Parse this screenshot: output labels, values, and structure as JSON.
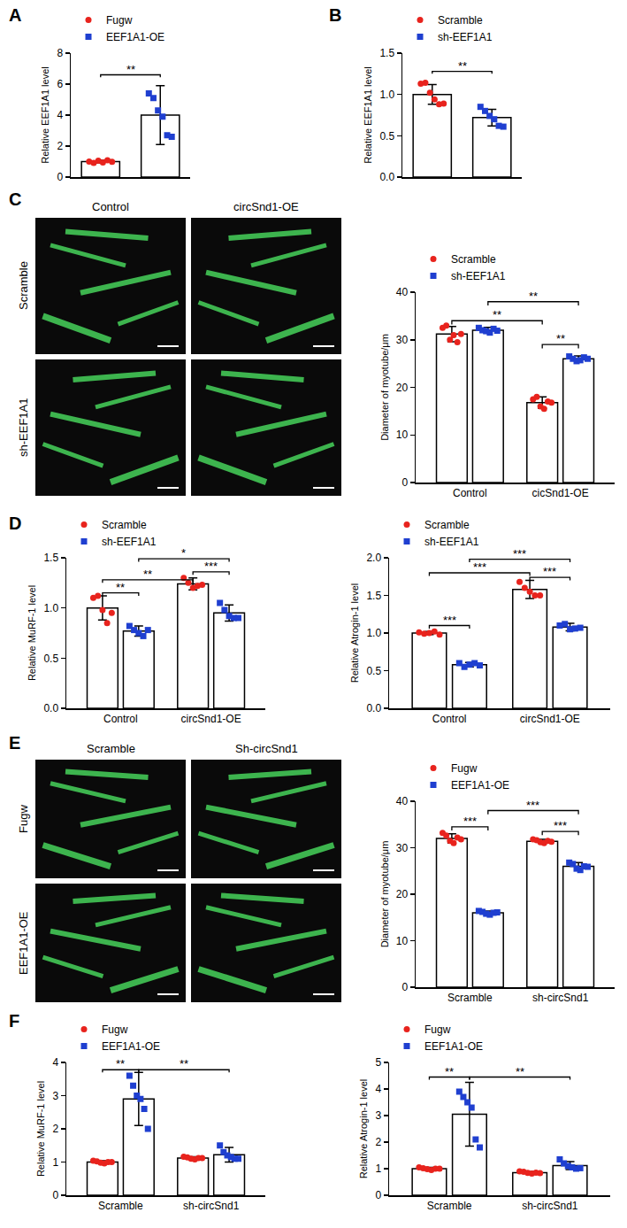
{
  "chart_data": [
    {
      "panel": "A",
      "type": "bar",
      "y_label": "Relative EEF1A1 level",
      "ylim": [
        0,
        8
      ],
      "yticks": [
        0,
        2,
        4,
        6,
        8
      ],
      "grid": false,
      "tick_labels": "y",
      "legend": "top",
      "series": [
        {
          "name": "Fugw",
          "color": "#e8231d",
          "marker": "circle",
          "values": [
            1.0
          ],
          "errors": [
            0.08
          ],
          "points": [
            [
              1.0,
              0.92,
              1.06,
              0.95,
              1.08,
              0.99
            ]
          ]
        },
        {
          "name": "EEF1A1-OE",
          "color": "#1f3fd0",
          "marker": "square",
          "values": [
            4.0
          ],
          "errors": [
            1.9
          ],
          "points": [
            [
              5.4,
              5.1,
              4.3,
              3.9,
              2.7,
              2.6
            ]
          ]
        }
      ],
      "comparisons": [
        {
          "from": [
            0,
            0
          ],
          "to": [
            0,
            1
          ],
          "y": 6.6,
          "label": "**"
        }
      ]
    },
    {
      "panel": "B",
      "type": "bar",
      "y_label": "Relative EEF1A1 level",
      "ylim": [
        0,
        1.5
      ],
      "yticks": [
        {
          "value": 0,
          "label": "0.0"
        },
        {
          "value": 0.5,
          "label": "0.5"
        },
        {
          "value": 1,
          "label": "1.0"
        },
        {
          "value": 1.5,
          "label": "1.5"
        }
      ],
      "grid": false,
      "tick_labels": "y",
      "legend": "top",
      "series": [
        {
          "name": "Scramble",
          "color": "#e8231d",
          "marker": "circle",
          "values": [
            1.0
          ],
          "errors": [
            0.12
          ],
          "points": [
            [
              1.13,
              1.14,
              1.02,
              0.94,
              0.88,
              0.89
            ]
          ]
        },
        {
          "name": "sh-EEF1A1",
          "color": "#1f3fd0",
          "marker": "square",
          "values": [
            0.72
          ],
          "errors": [
            0.1
          ],
          "points": [
            [
              0.85,
              0.8,
              0.74,
              0.7,
              0.62,
              0.61
            ]
          ]
        }
      ],
      "comparisons": [
        {
          "from": [
            0,
            0
          ],
          "to": [
            0,
            1
          ],
          "y": 1.28,
          "label": "**"
        }
      ]
    },
    {
      "panel": "C",
      "type": "bar",
      "y_label": "Diameter of myotube/μm",
      "categories": [
        "Control",
        "cicSnd1-OE"
      ],
      "ylim": [
        0,
        40
      ],
      "yticks": [
        0,
        10,
        20,
        30,
        40
      ],
      "grid": false,
      "legend": "top",
      "series": [
        {
          "name": "Scramble",
          "color": "#e8231d",
          "marker": "circle",
          "values": [
            31.2,
            16.8
          ],
          "errors": [
            1.6,
            1.2
          ],
          "points": [
            [
              32.5,
              33.0,
              30.0,
              31.0,
              29.5,
              31.2
            ],
            [
              17.5,
              18.0,
              16.0,
              15.5,
              17.0,
              16.8
            ]
          ]
        },
        {
          "name": "sh-EEF1A1",
          "color": "#1f3fd0",
          "marker": "square",
          "values": [
            32.0,
            26.0
          ],
          "errors": [
            0.6,
            0.6
          ],
          "points": [
            [
              32.5,
              32.0,
              31.8,
              31.5,
              32.3,
              31.9
            ],
            [
              26.5,
              26.0,
              25.5,
              25.7,
              26.3,
              26.0
            ]
          ]
        }
      ],
      "comparisons": [
        {
          "from": [
            1,
            0
          ],
          "to": [
            1,
            1
          ],
          "y": 29,
          "label": "**"
        },
        {
          "from": [
            0,
            0
          ],
          "to": [
            1,
            0
          ],
          "y": 34,
          "label": "**"
        },
        {
          "from": [
            0,
            1
          ],
          "to": [
            1,
            1
          ],
          "y": 38,
          "label": "**"
        }
      ]
    },
    {
      "panel": "D",
      "type": "bar",
      "y_label": "Relative MuRF-1 level",
      "categories": [
        "Control",
        "circSnd1-OE"
      ],
      "ylim": [
        0,
        1.5
      ],
      "yticks": [
        {
          "value": 0,
          "label": "0.0"
        },
        {
          "value": 0.5,
          "label": "0.5"
        },
        {
          "value": 1,
          "label": "1.0"
        },
        {
          "value": 1.5,
          "label": "1.5"
        }
      ],
      "grid": false,
      "legend": "top",
      "series": [
        {
          "name": "Scramble",
          "color": "#e8231d",
          "marker": "circle",
          "values": [
            1.0,
            1.24
          ],
          "errors": [
            0.12,
            0.06
          ],
          "points": [
            [
              1.1,
              1.12,
              0.98,
              0.85,
              0.95
            ],
            [
              1.3,
              1.25,
              1.2,
              1.22,
              1.23
            ]
          ]
        },
        {
          "name": "sh-EEF1A1",
          "color": "#1f3fd0",
          "marker": "square",
          "values": [
            0.77,
            0.95
          ],
          "errors": [
            0.05,
            0.08
          ],
          "points": [
            [
              0.82,
              0.78,
              0.75,
              0.72,
              0.78
            ],
            [
              1.05,
              0.98,
              0.92,
              0.9,
              0.9
            ]
          ]
        }
      ],
      "comparisons": [
        {
          "from": [
            0,
            0
          ],
          "to": [
            0,
            1
          ],
          "y": 1.15,
          "label": "**"
        },
        {
          "from": [
            0,
            0
          ],
          "to": [
            1,
            0
          ],
          "y": 1.28,
          "label": "**"
        },
        {
          "from": [
            1,
            0
          ],
          "to": [
            1,
            1
          ],
          "y": 1.36,
          "label": "***"
        },
        {
          "from": [
            0,
            1
          ],
          "to": [
            1,
            1
          ],
          "y": 1.49,
          "label": "*"
        }
      ]
    },
    {
      "panel": "D",
      "type": "bar",
      "y_label": "Relative Atrogin-1 level",
      "categories": [
        "Control",
        "circSnd1-OE"
      ],
      "ylim": [
        0,
        2
      ],
      "yticks": [
        {
          "value": 0,
          "label": "0.0"
        },
        {
          "value": 0.5,
          "label": "0.5"
        },
        {
          "value": 1,
          "label": "1.0"
        },
        {
          "value": 1.5,
          "label": "1.5"
        },
        {
          "value": 2,
          "label": "2.0"
        }
      ],
      "grid": false,
      "legend": "top",
      "series": [
        {
          "name": "Scramble",
          "color": "#e8231d",
          "marker": "circle",
          "values": [
            1.0,
            1.58
          ],
          "errors": [
            0.02,
            0.12
          ],
          "points": [
            [
              1.01,
              0.99,
              1.0,
              1.02,
              0.98
            ],
            [
              1.68,
              1.6,
              1.55,
              1.5,
              1.5
            ]
          ]
        },
        {
          "name": "sh-EEF1A1",
          "color": "#1f3fd0",
          "marker": "square",
          "values": [
            0.58,
            1.08
          ],
          "errors": [
            0.03,
            0.05
          ],
          "points": [
            [
              0.6,
              0.55,
              0.58,
              0.6,
              0.57
            ],
            [
              1.1,
              1.12,
              1.05,
              1.06,
              1.07
            ]
          ]
        }
      ],
      "comparisons": [
        {
          "from": [
            0,
            0
          ],
          "to": [
            0,
            1
          ],
          "y": 1.1,
          "label": "***"
        },
        {
          "from": [
            1,
            0
          ],
          "to": [
            1,
            1
          ],
          "y": 1.74,
          "label": "***"
        },
        {
          "from": [
            0,
            0
          ],
          "to": [
            1,
            0
          ],
          "y": 1.8,
          "label": "***"
        },
        {
          "from": [
            0,
            1
          ],
          "to": [
            1,
            1
          ],
          "y": 1.98,
          "label": "***"
        }
      ]
    },
    {
      "panel": "E",
      "type": "bar",
      "y_label": "Diameter of myotube/μm",
      "categories": [
        "Scramble",
        "sh-circSnd1"
      ],
      "ylim": [
        0,
        40
      ],
      "yticks": [
        0,
        10,
        20,
        30,
        40
      ],
      "grid": false,
      "legend": "top",
      "series": [
        {
          "name": "Fugw",
          "color": "#e8231d",
          "marker": "circle",
          "values": [
            32.0,
            31.4
          ],
          "errors": [
            1.0,
            0.4
          ],
          "points": [
            [
              33.2,
              32.6,
              31.5,
              31.0,
              32.2,
              31.8
            ],
            [
              31.8,
              31.6,
              31.2,
              31.0,
              31.5,
              31.3
            ]
          ]
        },
        {
          "name": "EEF1A1-OE",
          "color": "#1f3fd0",
          "marker": "square",
          "values": [
            16.0,
            26.0
          ],
          "errors": [
            0.4,
            0.8
          ],
          "points": [
            [
              16.4,
              16.2,
              15.8,
              15.6,
              16.0,
              16.1
            ],
            [
              26.8,
              26.5,
              25.5,
              25.2,
              26.0,
              25.9
            ]
          ]
        }
      ],
      "comparisons": [
        {
          "from": [
            0,
            0
          ],
          "to": [
            0,
            1
          ],
          "y": 34.5,
          "label": "***"
        },
        {
          "from": [
            1,
            0
          ],
          "to": [
            1,
            1
          ],
          "y": 33.5,
          "label": "***"
        },
        {
          "from": [
            0,
            1
          ],
          "to": [
            1,
            1
          ],
          "y": 38,
          "label": "***"
        }
      ]
    },
    {
      "panel": "F",
      "type": "bar",
      "y_label": "Relative MuRF-1 level",
      "categories": [
        "Scramble",
        "sh-circSnd1"
      ],
      "ylim": [
        0,
        4
      ],
      "yticks": [
        0,
        1,
        2,
        3,
        4
      ],
      "grid": false,
      "legend": "top",
      "series": [
        {
          "name": "Fugw",
          "color": "#e8231d",
          "marker": "circle",
          "values": [
            1.0,
            1.12
          ],
          "errors": [
            0.04,
            0.04
          ],
          "points": [
            [
              1.04,
              1.02,
              0.98,
              0.96,
              1.0,
              1.0
            ],
            [
              1.16,
              1.14,
              1.1,
              1.08,
              1.12,
              1.12
            ]
          ]
        },
        {
          "name": "EEF1A1-OE",
          "color": "#1f3fd0",
          "marker": "square",
          "values": [
            2.9,
            1.22
          ],
          "errors": [
            0.8,
            0.22
          ],
          "points": [
            [
              3.6,
              3.3,
              3.0,
              2.9,
              2.6,
              2.0
            ],
            [
              1.5,
              1.3,
              1.2,
              1.15,
              1.1,
              1.1
            ]
          ]
        }
      ],
      "comparisons": [
        {
          "from": [
            0,
            0
          ],
          "to": [
            0,
            1
          ],
          "y": 3.78,
          "label": "**"
        },
        {
          "from": [
            0,
            1
          ],
          "to": [
            1,
            1
          ],
          "y": 3.78,
          "label": "**"
        }
      ]
    },
    {
      "panel": "F",
      "type": "bar",
      "y_label": "Relative Atrogin-1 level",
      "categories": [
        "Scramble",
        "sh-circSnd1"
      ],
      "ylim": [
        0,
        5
      ],
      "yticks": [
        0,
        1,
        2,
        3,
        4,
        5
      ],
      "grid": false,
      "legend": "top",
      "series": [
        {
          "name": "Fugw",
          "color": "#e8231d",
          "marker": "circle",
          "values": [
            1.0,
            0.85
          ],
          "errors": [
            0.05,
            0.04
          ],
          "points": [
            [
              1.05,
              1.02,
              0.98,
              0.95,
              1.0,
              1.0
            ],
            [
              0.9,
              0.88,
              0.84,
              0.82,
              0.85,
              0.83
            ]
          ]
        },
        {
          "name": "EEF1A1-OE",
          "color": "#1f3fd0",
          "marker": "square",
          "values": [
            3.05,
            1.12
          ],
          "errors": [
            1.2,
            0.15
          ],
          "points": [
            [
              3.9,
              3.7,
              3.5,
              3.3,
              2.1,
              1.8
            ],
            [
              1.35,
              1.2,
              1.1,
              1.05,
              1.0,
              1.02
            ]
          ]
        }
      ],
      "comparisons": [
        {
          "from": [
            0,
            0
          ],
          "to": [
            0,
            1
          ],
          "y": 4.45,
          "label": "**"
        },
        {
          "from": [
            0,
            1
          ],
          "to": [
            1,
            1
          ],
          "y": 4.45,
          "label": "**"
        }
      ]
    }
  ],
  "image_grids": [
    {
      "panel": "C",
      "columns": [
        "Control",
        "circSnd1-OE"
      ],
      "rows": [
        "Scramble",
        "sh-EEF1A1"
      ]
    },
    {
      "panel": "E",
      "columns": [
        "Scramble",
        "Sh-circSnd1"
      ],
      "rows": [
        "Fugw",
        "EEF1A1-OE"
      ]
    }
  ]
}
